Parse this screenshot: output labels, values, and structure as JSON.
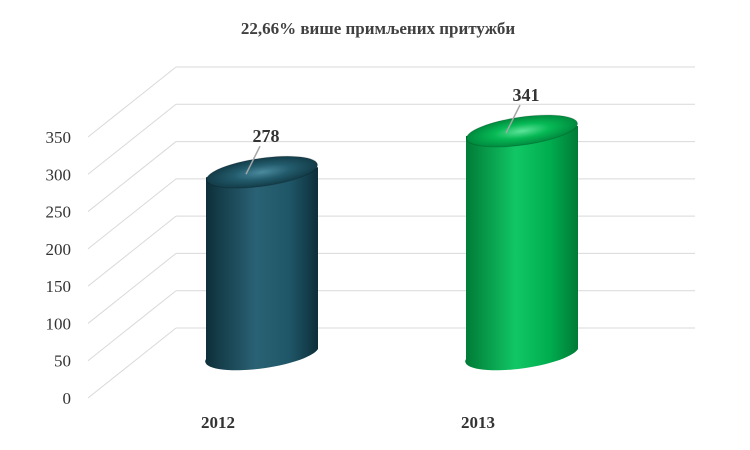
{
  "chart_data": {
    "type": "bar",
    "style": "3d-cylinder",
    "title": "22,66% више примљених притужби",
    "categories": [
      "2012",
      "2013"
    ],
    "values": [
      278,
      341
    ],
    "ylim": [
      0,
      350
    ],
    "ytick_labels": [
      "0",
      "50",
      "100",
      "150",
      "200",
      "250",
      "300",
      "350"
    ],
    "grid": true,
    "legend": "none",
    "colors": [
      "#215868",
      "#00B050"
    ]
  }
}
